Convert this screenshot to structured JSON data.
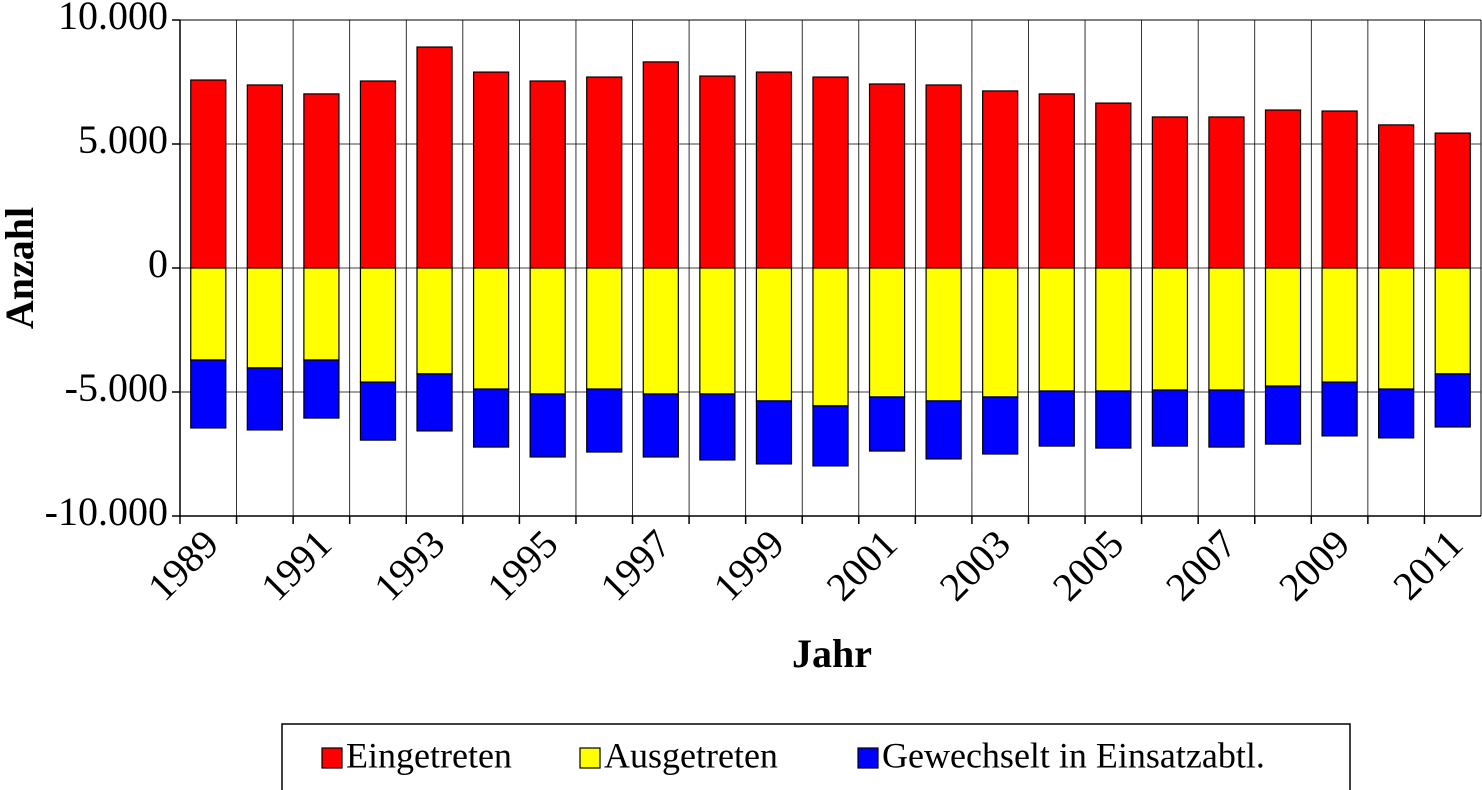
{
  "chart_data": {
    "type": "stacked_bar",
    "x_label": "Jahr",
    "y_label": "Anzahl",
    "categories": [
      "1989",
      null,
      "1991",
      null,
      "1993",
      null,
      "1995",
      null,
      "1997",
      null,
      "1999",
      null,
      "2001",
      null,
      "2003",
      null,
      "2005",
      null,
      "2007",
      null,
      "2009",
      null,
      "2011"
    ],
    "series": [
      {
        "name": "Eingetreten",
        "color": "#ff0000",
        "values": [
          7580,
          7380,
          7020,
          7540,
          8910,
          7900,
          7540,
          7700,
          8310,
          7740,
          7900,
          7700,
          7420,
          7380,
          7140,
          7020,
          6650,
          6090,
          6090,
          6370,
          6330,
          5770,
          5440
        ]
      },
      {
        "name": "Ausgetreten",
        "color": "#ffff00",
        "values": [
          -3710,
          -4030,
          -3710,
          -4600,
          -4270,
          -4880,
          -5080,
          -4880,
          -5080,
          -5080,
          -5360,
          -5560,
          -5200,
          -5360,
          -5200,
          -4960,
          -4960,
          -4920,
          -4920,
          -4760,
          -4600,
          -4880,
          -4270
        ]
      },
      {
        "name": "Gewechselt in Einsatzabtl.",
        "color": "#0000ff",
        "values": [
          -2740,
          -2500,
          -2340,
          -2340,
          -2300,
          -2340,
          -2540,
          -2540,
          -2540,
          -2660,
          -2540,
          -2420,
          -2180,
          -2340,
          -2300,
          -2220,
          -2300,
          -2260,
          -2300,
          -2340,
          -2170,
          -1970,
          -2140
        ]
      }
    ],
    "ylim": [
      -10000,
      10000
    ],
    "yticks": [
      {
        "value": -10000,
        "label": "-10.000"
      },
      {
        "value": -5000,
        "label": "-5.000"
      },
      0,
      {
        "value": 5000,
        "label": "5.000"
      },
      {
        "value": 10000,
        "label": "10.000"
      }
    ],
    "grid": true
  }
}
